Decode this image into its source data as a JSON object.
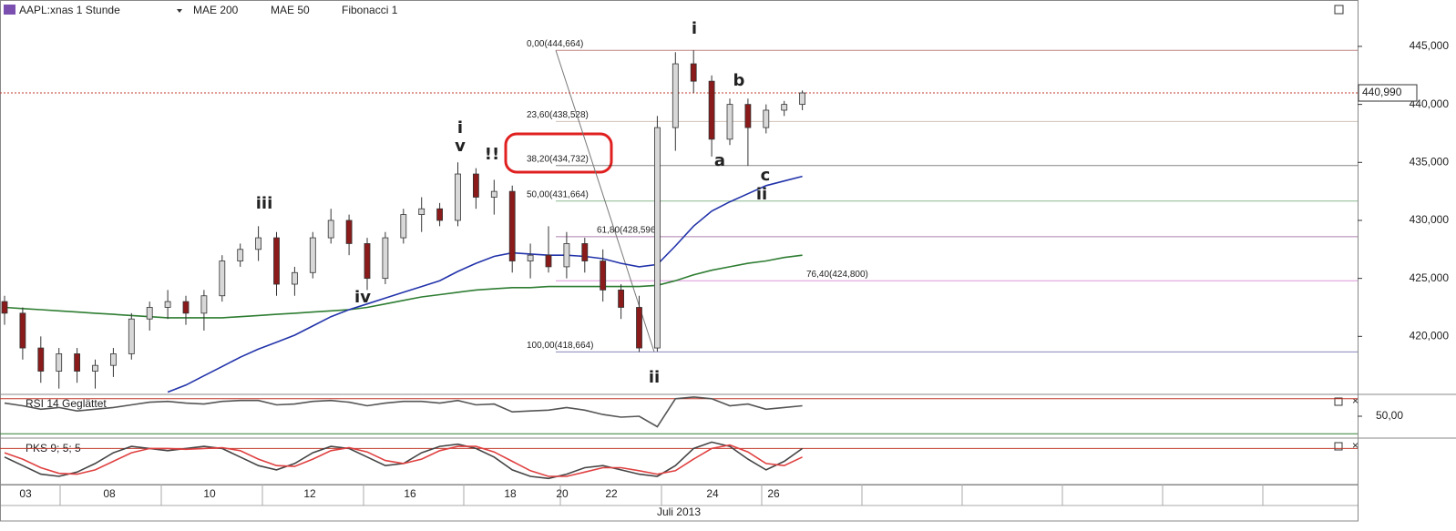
{
  "chart_data": {
    "type": "candlestick",
    "title": "AAPL:xnas 1 Stunde",
    "indicators": [
      {
        "name": "MAE 200",
        "color": "#2e7d32"
      },
      {
        "name": "MAE 50",
        "color": "#2233aa"
      },
      {
        "name": "Fibonacci 1",
        "color": "#222222"
      }
    ],
    "open": [
      423,
      422,
      419,
      417,
      418.5,
      417,
      417.5,
      418.5,
      421.5,
      422.5,
      423,
      422,
      423.5,
      426.5,
      427.5,
      428.5,
      424.5,
      425.5,
      428.5,
      430,
      428,
      425,
      428.5,
      430.5,
      431,
      430,
      434,
      432,
      432.5,
      426.5,
      427,
      426,
      428,
      426.5,
      424,
      422.5,
      419,
      438,
      443.5,
      442,
      437,
      440,
      438,
      439.5,
      440
    ],
    "high": [
      423.5,
      422.5,
      420,
      419,
      419,
      418,
      419,
      422,
      423,
      424,
      423.5,
      424,
      427,
      428,
      429.5,
      429,
      426,
      429,
      431,
      430.5,
      428.5,
      429,
      431,
      432,
      431.5,
      435,
      434.5,
      433.5,
      433,
      428,
      429.5,
      429,
      428.5,
      427.5,
      424.5,
      423.5,
      439,
      444.5,
      444.664,
      442.5,
      440.5,
      440.5,
      440,
      440.3,
      441.2
    ],
    "low": [
      421,
      418,
      416,
      415.5,
      416,
      415.5,
      416.5,
      418,
      420.5,
      421.5,
      421,
      420.5,
      423,
      426,
      426.5,
      423.5,
      423.5,
      425,
      428,
      427,
      424,
      424.5,
      428,
      429,
      429.5,
      429.5,
      431,
      430.5,
      425.5,
      425,
      425.5,
      425,
      425.5,
      423,
      421.5,
      418.664,
      418.7,
      436,
      441,
      435.5,
      436.5,
      434.7,
      437.5,
      439,
      439.5
    ],
    "close": [
      422,
      419,
      417,
      418.5,
      417,
      417.5,
      418.5,
      421.5,
      422.5,
      423,
      422,
      423.5,
      426.5,
      427.5,
      428.5,
      424.5,
      425.5,
      428.5,
      430,
      428,
      425,
      428.5,
      430.5,
      431,
      430,
      434,
      432,
      432.5,
      426.5,
      427,
      426,
      428,
      426.5,
      424,
      422.5,
      419,
      438,
      443.5,
      442,
      437,
      440,
      438,
      439.5,
      440,
      440.99
    ],
    "up_color": "#d8d8d8",
    "down_color": "#8b1a1a",
    "series": [
      {
        "name": "MAE 200",
        "color": "#2e7d32",
        "values": [
          422.5,
          422.4,
          422.3,
          422.2,
          422.1,
          422,
          421.9,
          421.8,
          421.7,
          421.6,
          421.6,
          421.6,
          421.6,
          421.7,
          421.8,
          421.9,
          422,
          422.1,
          422.2,
          422.3,
          422.5,
          422.8,
          423.1,
          423.4,
          423.6,
          423.8,
          424,
          424.1,
          424.2,
          424.2,
          424.3,
          424.3,
          424.3,
          424.3,
          424.3,
          424.3,
          424.4,
          424.8,
          425.3,
          425.7,
          426,
          426.3,
          426.5,
          426.8,
          427
        ]
      },
      {
        "name": "MAE 50",
        "color": "#2233aa",
        "values": [
          null,
          null,
          null,
          null,
          null,
          null,
          null,
          null,
          null,
          415.2,
          415.8,
          416.6,
          417.4,
          418.2,
          418.9,
          419.5,
          420.1,
          420.9,
          421.7,
          422.3,
          422.8,
          423.3,
          423.8,
          424.3,
          424.8,
          425.6,
          426.3,
          426.9,
          427.2,
          427.1,
          427,
          427,
          426.9,
          426.7,
          426.3,
          426,
          426.2,
          427.8,
          429.5,
          430.8,
          431.6,
          432.3,
          433,
          433.4,
          433.8
        ]
      }
    ],
    "ylim": [
      415,
      449
    ],
    "yticks": [
      {
        "value": 420,
        "label": "420,000"
      },
      {
        "value": 425,
        "label": "425,000"
      },
      {
        "value": 430,
        "label": "430,000"
      },
      {
        "value": 435,
        "label": "435,000"
      },
      {
        "value": 440,
        "label": "440,000"
      },
      {
        "value": 445,
        "label": "445,000"
      }
    ],
    "current_price": {
      "value": 440.99,
      "label": "440,990",
      "color": "#c0392b"
    },
    "fibonacci": [
      {
        "value": 444.664,
        "label": "0,00(444,664)",
        "color": "#8b2020"
      },
      {
        "value": 438.528,
        "label": "23,60(438,528)",
        "color": "#a89080"
      },
      {
        "value": 434.732,
        "label": "38,20(434,732)",
        "color": "#222222"
      },
      {
        "value": 431.664,
        "label": "50,00(431,664)",
        "color": "#2e7d32"
      },
      {
        "value": 428.596,
        "label": "61,80(428,596)",
        "color": "#6a1b6a"
      },
      {
        "value": 424.8,
        "label": "76,40(424,800)",
        "color": "#c040c0"
      },
      {
        "value": 418.664,
        "label": "100,00(418,664)",
        "color": "#202080"
      }
    ],
    "waves": [
      {
        "text": "iii",
        "color": "#3cb043"
      },
      {
        "text": "iv",
        "color": "#3cb043"
      },
      {
        "text": "i",
        "color": "#2233aa"
      },
      {
        "text": "v",
        "color": "#3cb043"
      },
      {
        "text": "!!",
        "color": "#e02020"
      },
      {
        "text": "ii",
        "color": "#2233aa"
      },
      {
        "text": "i",
        "color": "#3cb043"
      },
      {
        "text": "b",
        "color": "#7a1020"
      },
      {
        "text": "a",
        "color": "#7a1020"
      },
      {
        "text": "c",
        "color": "#7a1020"
      },
      {
        "text": "ii",
        "color": "#3cb043"
      }
    ],
    "x_labels": [
      "03",
      "08",
      "10",
      "12",
      "16",
      "18",
      "20",
      "22",
      "24",
      "26"
    ],
    "x_title": "Juli 2013",
    "rsi": {
      "name": "RSI 14 Geglättet",
      "color": "#555555",
      "ylim": [
        25,
        75
      ],
      "yticks": [
        {
          "value": 50,
          "label": "50,00"
        }
      ],
      "levels": [
        {
          "value": 70,
          "color": "#c0392b"
        },
        {
          "value": 30,
          "color": "#2e7d32"
        }
      ],
      "values": [
        65,
        62,
        58,
        60,
        56,
        58,
        60,
        63,
        66,
        67,
        65,
        64,
        67,
        68,
        68,
        63,
        64,
        67,
        68,
        66,
        62,
        65,
        67,
        67,
        65,
        68,
        63,
        64,
        55,
        56,
        57,
        60,
        57,
        52,
        49,
        50,
        38,
        70,
        72,
        70,
        62,
        64,
        58,
        60,
        62
      ]
    },
    "pks": {
      "name": "PKS 9; 5; 5",
      "ylim": [
        0,
        100
      ],
      "levels": [
        {
          "value": 80,
          "color": "#c0392b"
        }
      ],
      "series": [
        {
          "color": "#444444",
          "values": [
            60,
            40,
            20,
            15,
            25,
            45,
            70,
            85,
            80,
            75,
            80,
            85,
            80,
            60,
            40,
            30,
            45,
            70,
            85,
            80,
            60,
            40,
            45,
            70,
            85,
            90,
            80,
            60,
            30,
            15,
            10,
            20,
            35,
            40,
            30,
            20,
            15,
            40,
            80,
            95,
            85,
            55,
            30,
            50,
            80
          ]
        },
        {
          "color": "#e04040",
          "values": [
            70,
            55,
            35,
            22,
            20,
            30,
            50,
            70,
            80,
            80,
            78,
            80,
            82,
            75,
            55,
            40,
            38,
            55,
            75,
            82,
            72,
            52,
            45,
            55,
            75,
            85,
            85,
            72,
            50,
            28,
            15,
            15,
            25,
            35,
            35,
            28,
            20,
            28,
            55,
            80,
            88,
            72,
            45,
            40,
            60
          ]
        }
      ]
    }
  }
}
